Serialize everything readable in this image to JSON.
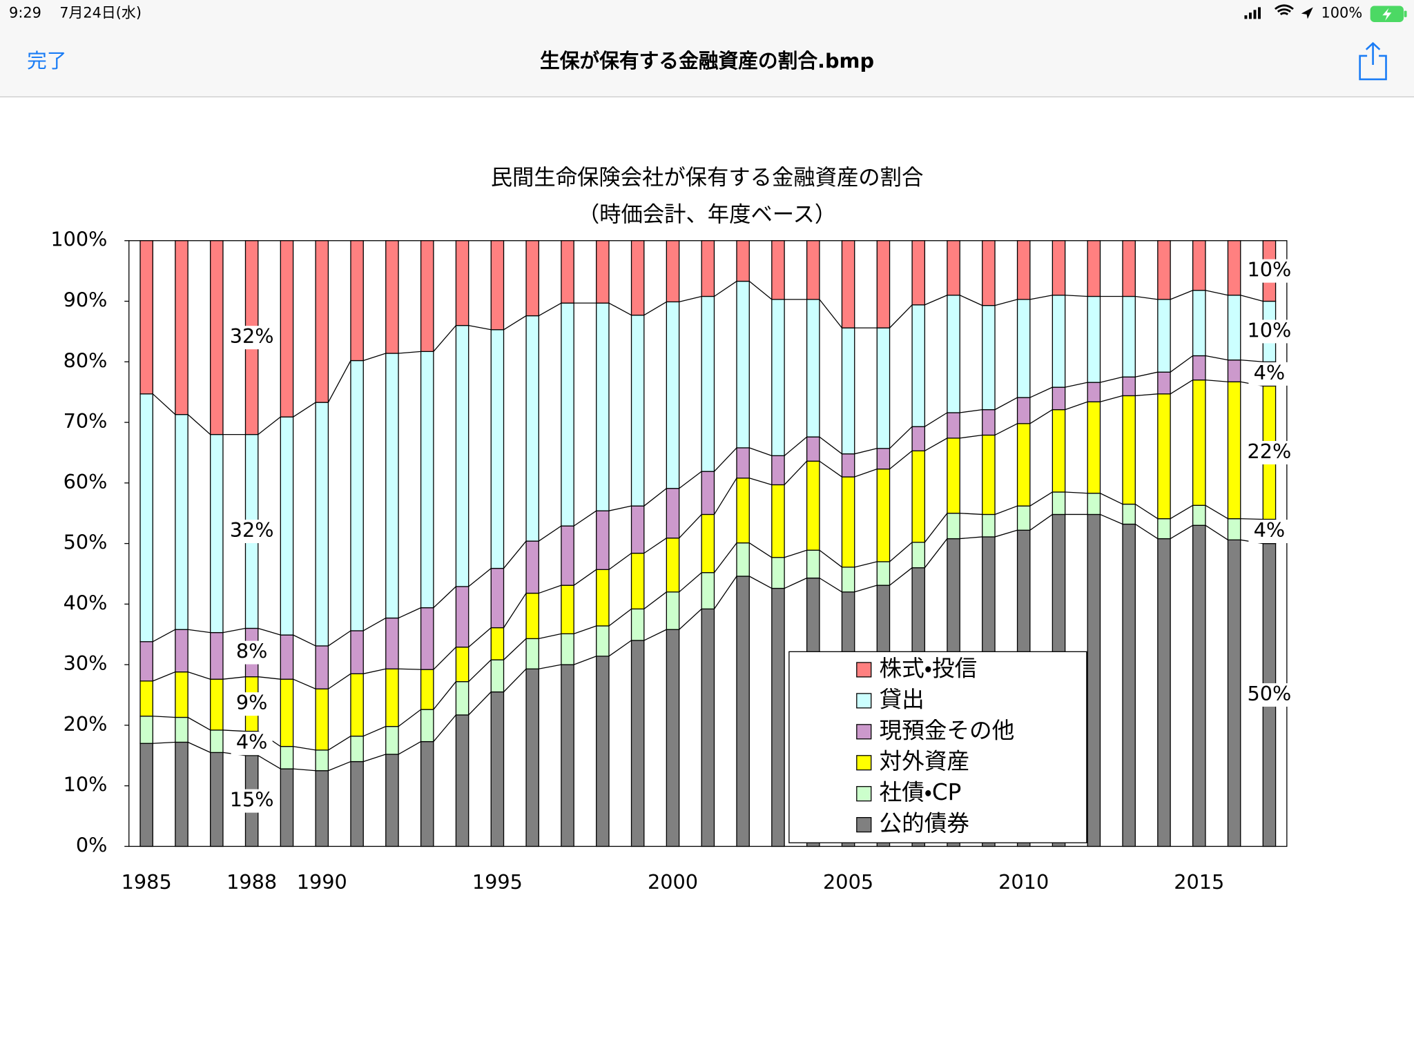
{
  "status_bar": {
    "time": "9:29",
    "date": "7月24日(水)",
    "battery": "100%"
  },
  "nav_bar": {
    "done": "完了",
    "title": "生保が保有する金融資産の割合.bmp"
  },
  "chart_data": {
    "type": "stacked_bar",
    "title": "民間生命保険会社が保有する金融資産の割合",
    "subtitle": "（時価会計、年度ベース）",
    "categories": [
      "1985",
      null,
      null,
      "1988",
      null,
      "1990",
      null,
      null,
      null,
      null,
      "1995",
      null,
      null,
      null,
      null,
      "2000",
      null,
      null,
      null,
      null,
      "2005",
      null,
      null,
      null,
      null,
      "2010",
      null,
      null,
      null,
      null,
      "2015",
      null,
      null
    ],
    "ylim": [
      0,
      100
    ],
    "yticks": [
      {
        "value": 0,
        "label": "0%"
      },
      {
        "value": 10,
        "label": "10%"
      },
      {
        "value": 20,
        "label": "20%"
      },
      {
        "value": 30,
        "label": "30%"
      },
      {
        "value": 40,
        "label": "40%"
      },
      {
        "value": 50,
        "label": "50%"
      },
      {
        "value": 60,
        "label": "60%"
      },
      {
        "value": 70,
        "label": "70%"
      },
      {
        "value": 80,
        "label": "80%"
      },
      {
        "value": 90,
        "label": "90%"
      },
      {
        "value": 100,
        "label": "100%"
      }
    ],
    "grid": false,
    "legend": "lower right",
    "series": [
      {
        "name": "公的債券",
        "color": "#808080",
        "values": [
          17,
          17.2,
          15.5,
          15,
          12.8,
          12.5,
          14,
          15.2,
          17.3,
          21.7,
          25.5,
          29.3,
          30,
          31.4,
          34,
          35.8,
          39.2,
          44.6,
          42.6,
          44.3,
          42,
          43.1,
          46,
          50.8,
          51.1,
          52.2,
          54.8,
          54.8,
          53.2,
          50.8,
          53,
          50.6,
          50
        ],
        "value_labels": [
          null,
          null,
          null,
          "15%",
          null,
          null,
          null,
          null,
          null,
          null,
          null,
          null,
          null,
          null,
          null,
          null,
          null,
          null,
          null,
          null,
          null,
          null,
          null,
          null,
          null,
          null,
          null,
          null,
          null,
          null,
          null,
          null,
          "50%"
        ]
      },
      {
        "name": "社債・CP",
        "color": "#ccffcc",
        "values": [
          4.5,
          4.1,
          3.7,
          4,
          3.7,
          3.4,
          4.2,
          4.6,
          5.3,
          5.5,
          5.3,
          5,
          5.1,
          5,
          5.2,
          6.2,
          6,
          5.5,
          5.1,
          4.6,
          4.1,
          3.9,
          4.2,
          4.2,
          3.7,
          4,
          3.7,
          3.5,
          3.3,
          3.3,
          3.3,
          3.5,
          4
        ],
        "value_labels": [
          null,
          null,
          null,
          "4%",
          null,
          null,
          null,
          null,
          null,
          null,
          null,
          null,
          null,
          null,
          null,
          null,
          null,
          null,
          null,
          null,
          null,
          null,
          null,
          null,
          null,
          null,
          null,
          null,
          null,
          null,
          null,
          null,
          "4%"
        ]
      },
      {
        "name": "対外資産",
        "color": "#ffff00",
        "values": [
          5.8,
          7.5,
          8.4,
          9,
          11.1,
          10.1,
          10.3,
          9.5,
          6.6,
          5.7,
          5.3,
          7.5,
          8,
          9.3,
          9.2,
          8.9,
          9.6,
          10.7,
          12,
          14.7,
          14.9,
          15.3,
          15.1,
          12.4,
          13.1,
          13.6,
          13.6,
          15.1,
          17.9,
          20.6,
          20.7,
          22.6,
          22
        ],
        "value_labels": [
          null,
          null,
          null,
          "9%",
          null,
          null,
          null,
          null,
          null,
          null,
          null,
          null,
          null,
          null,
          null,
          null,
          null,
          null,
          null,
          null,
          null,
          null,
          null,
          null,
          null,
          null,
          null,
          null,
          null,
          null,
          null,
          null,
          "22%"
        ]
      },
      {
        "name": "現預金その他",
        "color": "#cc99cc",
        "values": [
          6.5,
          7,
          7.7,
          8,
          7.3,
          7.1,
          7.1,
          8.4,
          10.2,
          10,
          9.8,
          8.6,
          9.8,
          9.7,
          7.8,
          8.2,
          7.1,
          5,
          4.8,
          4,
          3.8,
          3.4,
          4,
          4.2,
          4.2,
          4.3,
          3.7,
          3.2,
          3.1,
          3.6,
          4,
          3.6,
          4
        ],
        "value_labels": [
          null,
          null,
          null,
          "8%",
          null,
          null,
          null,
          null,
          null,
          null,
          null,
          null,
          null,
          null,
          null,
          null,
          null,
          null,
          null,
          null,
          null,
          null,
          null,
          null,
          null,
          null,
          null,
          null,
          null,
          null,
          null,
          null,
          "4%"
        ]
      },
      {
        "name": "貸出",
        "color": "#ccffff",
        "values": [
          40.9,
          35.5,
          32.7,
          32,
          36,
          40.2,
          44.6,
          43.7,
          42.3,
          43.1,
          39.4,
          37.2,
          36.8,
          34.3,
          31.5,
          30.8,
          28.9,
          27.5,
          25.8,
          22.7,
          20.8,
          19.9,
          20.1,
          19.4,
          17.2,
          16.2,
          15.2,
          14.2,
          13.3,
          12,
          10.8,
          10.7,
          10
        ],
        "value_labels": [
          null,
          null,
          null,
          "32%",
          null,
          null,
          null,
          null,
          null,
          null,
          null,
          null,
          null,
          null,
          null,
          null,
          null,
          null,
          null,
          null,
          null,
          null,
          null,
          null,
          null,
          null,
          null,
          null,
          null,
          null,
          null,
          null,
          "10%"
        ]
      },
      {
        "name": "株式・投信",
        "color": "#ff8080",
        "values": [
          25.3,
          28.7,
          32,
          32,
          29.1,
          26.7,
          19.8,
          18.6,
          18.3,
          14,
          14.7,
          12.4,
          10.3,
          10.3,
          12.3,
          10.1,
          9.2,
          6.7,
          9.7,
          9.7,
          14.4,
          14.4,
          10.6,
          9,
          10.7,
          9.7,
          9,
          9.2,
          9.2,
          9.7,
          8.2,
          9,
          10
        ],
        "value_labels": [
          null,
          null,
          null,
          "32%",
          null,
          null,
          null,
          null,
          null,
          null,
          null,
          null,
          null,
          null,
          null,
          null,
          null,
          null,
          null,
          null,
          null,
          null,
          null,
          null,
          null,
          null,
          null,
          null,
          null,
          null,
          null,
          null,
          "10%"
        ]
      }
    ]
  }
}
